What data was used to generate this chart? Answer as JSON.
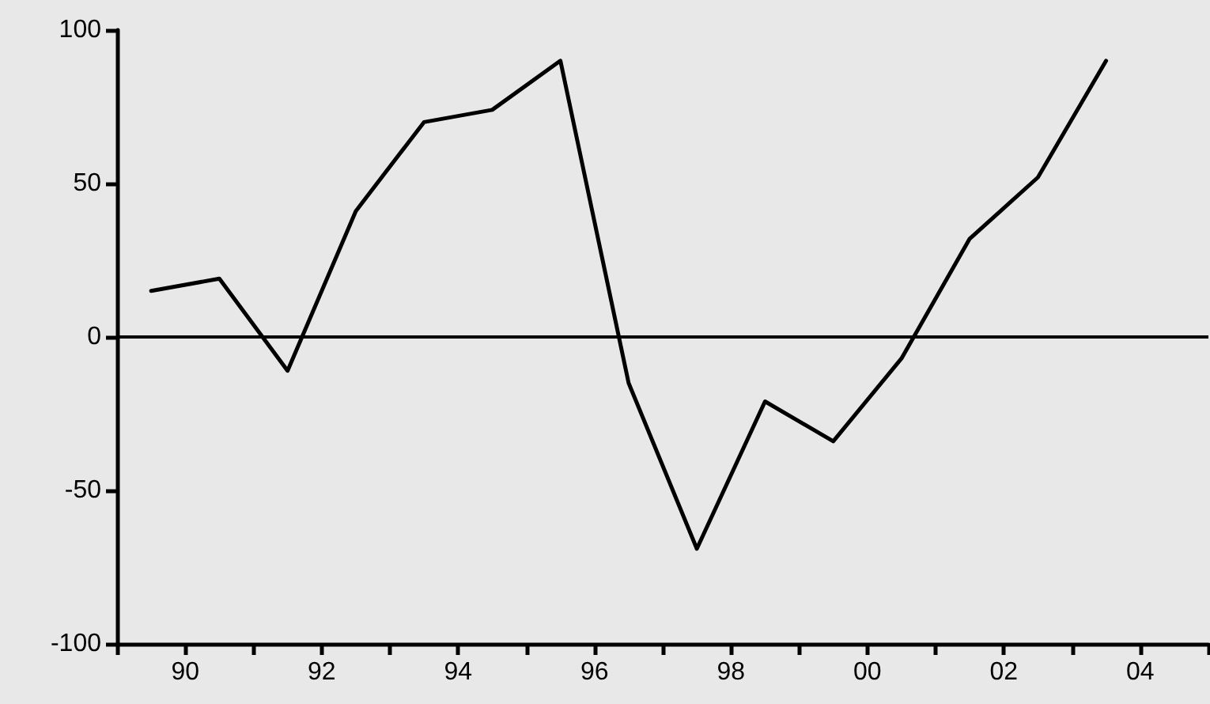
{
  "chart_data": {
    "type": "line",
    "x": [
      1989.5,
      1990.5,
      1991.5,
      1992.5,
      1993.5,
      1994.5,
      1995.5,
      1996.5,
      1997.5,
      1998.5,
      1999.5,
      2000.5,
      2001.5,
      2002.5,
      2003.5
    ],
    "series": [
      {
        "color": "#000000",
        "values": [
          15,
          19,
          -11,
          41,
          70,
          74,
          90,
          -15,
          -69,
          -21,
          -34,
          -7,
          32,
          52,
          90
        ]
      }
    ],
    "xlim": [
      1989,
      2005
    ],
    "xticks": [
      {
        "value": 1989,
        "label": null
      },
      {
        "value": 1990,
        "label": "90"
      },
      {
        "value": 1991,
        "label": null
      },
      {
        "value": 1992,
        "label": "92"
      },
      {
        "value": 1993,
        "label": null
      },
      {
        "value": 1994,
        "label": "94"
      },
      {
        "value": 1995,
        "label": null
      },
      {
        "value": 1996,
        "label": "96"
      },
      {
        "value": 1997,
        "label": null
      },
      {
        "value": 1998,
        "label": "98"
      },
      {
        "value": 1999,
        "label": null
      },
      {
        "value": 2000,
        "label": "00"
      },
      {
        "value": 2001,
        "label": null
      },
      {
        "value": 2002,
        "label": "02"
      },
      {
        "value": 2003,
        "label": null
      },
      {
        "value": 2004,
        "label": "04"
      },
      {
        "value": 2005,
        "label": null
      }
    ],
    "ylim": [
      -100,
      100
    ],
    "yticks": [
      -100,
      -50,
      0,
      50,
      100
    ],
    "ref_lines": [
      {
        "axis": "y",
        "value": 0,
        "color": "#000000"
      }
    ],
    "grid": false,
    "marker": "none",
    "line_style": "solid"
  }
}
